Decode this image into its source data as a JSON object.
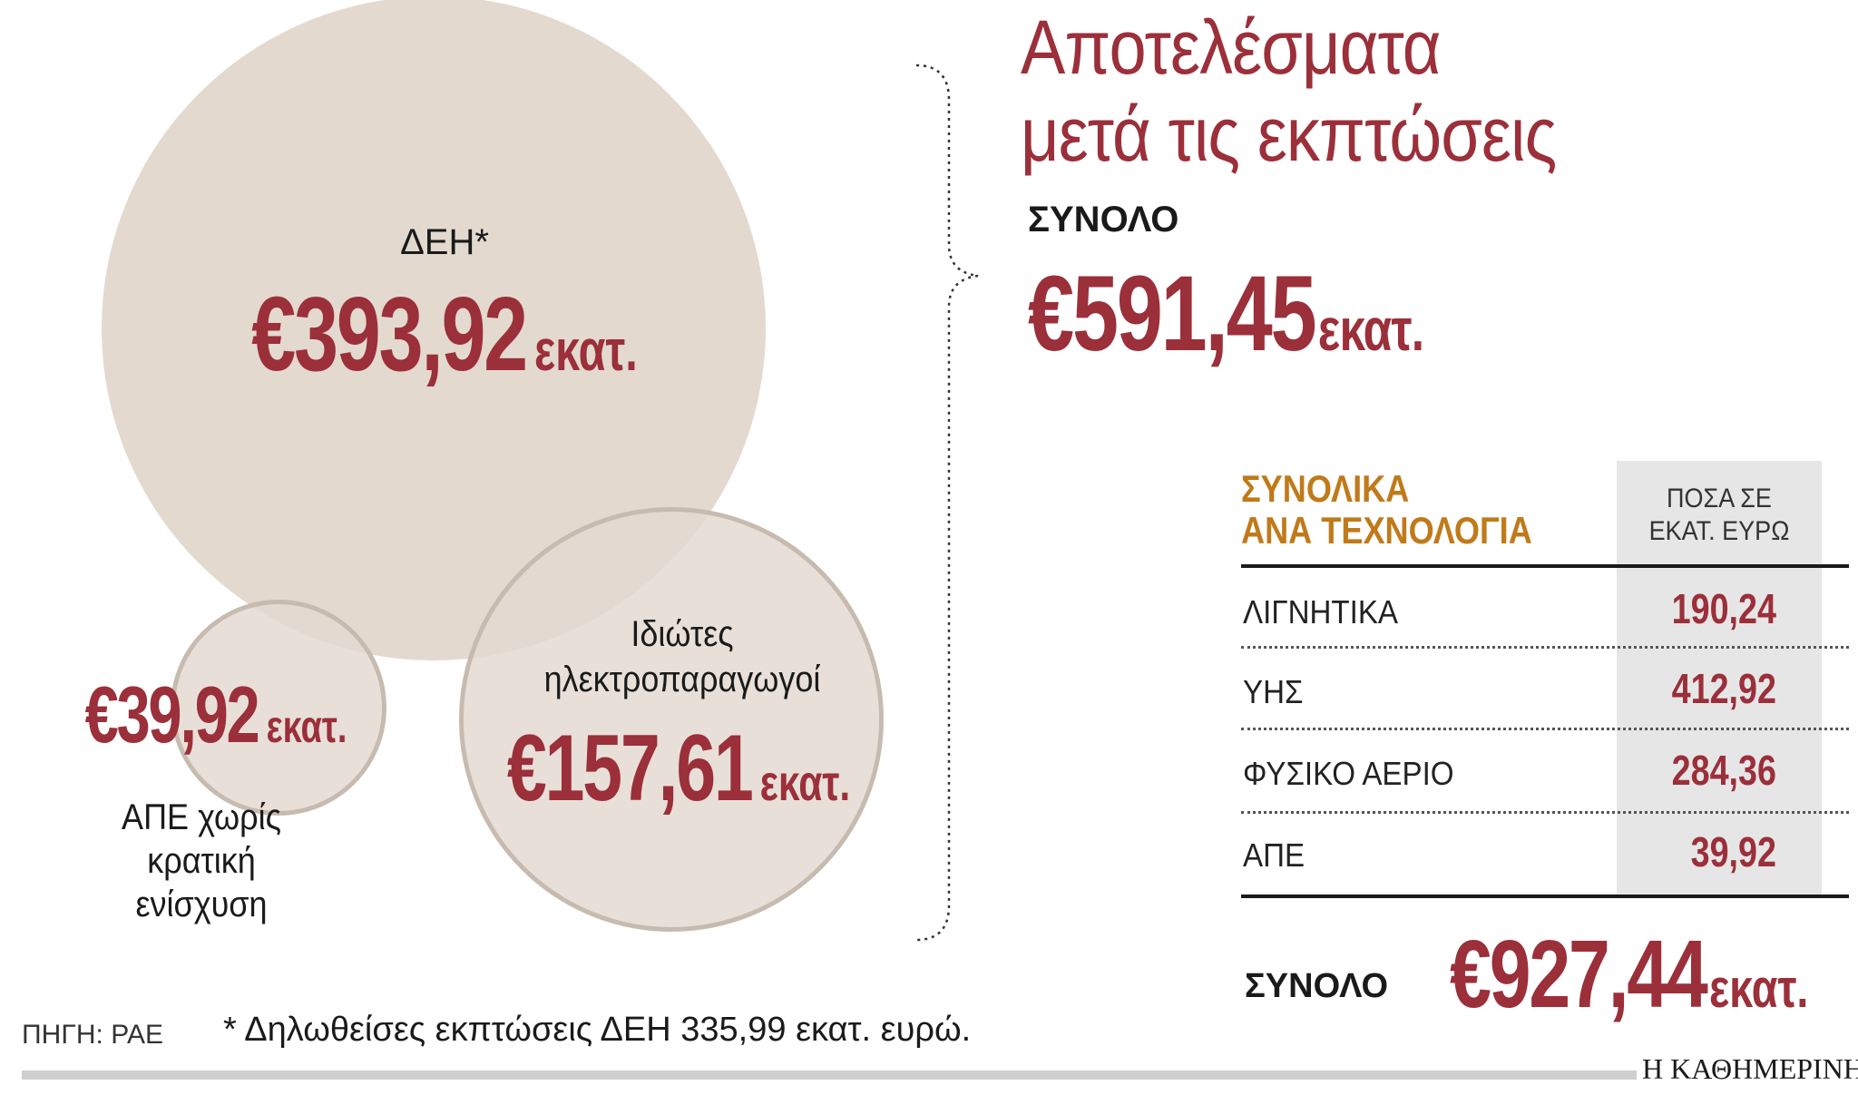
{
  "title_line1": "Αποτελέσματα",
  "title_line2": "μετά τις εκπτώσεις",
  "overall_total_label": "ΣΥΝΟΛΟ",
  "overall_total_value": "€591,45",
  "overall_total_unit": "εκατ.",
  "chart_data": [
    {
      "type": "bubble",
      "items": [
        {
          "name": "ΔΕΗ*",
          "value": 393.92,
          "label": "€393,92",
          "unit": "εκατ."
        },
        {
          "name_lines": [
            "Ιδιώτες",
            "ηλεκτροπαραγωγοί"
          ],
          "value": 157.61,
          "label": "€157,61",
          "unit": "εκατ."
        },
        {
          "name_lines": [
            "ΑΠΕ χωρίς",
            "κρατική",
            "ενίσχυση"
          ],
          "value": 39.92,
          "label": "€39,92",
          "unit": "εκατ."
        }
      ],
      "colors": {
        "fill": "#e3d9cf",
        "stroke": "#c7bbb0",
        "value_text": "#9b2f3a",
        "name_text": "#1a1a1a"
      }
    },
    {
      "type": "table",
      "title_lines": [
        "ΣΥΝΟΛΙΚΑ",
        "ΑΝΑ ΤΕΧΝΟΛΟΓΙΑ"
      ],
      "column_header_lines": [
        "ΠΟΣΑ ΣΕ",
        "ΕΚΑΤ. ΕΥΡΩ"
      ],
      "rows": [
        {
          "label": "ΛΙΓΝΗΤΙΚΑ",
          "value": "190,24"
        },
        {
          "label": "ΥΗΣ",
          "value": "412,92"
        },
        {
          "label": "ΦΥΣΙΚΟ ΑΕΡΙΟ",
          "value": "284,36"
        },
        {
          "label": "ΑΠΕ",
          "value": "39,92"
        }
      ],
      "total_label": "ΣΥΝΟΛΟ",
      "total_value": "€927,44",
      "total_unit": "εκατ."
    }
  ],
  "source": "ΠΗΓΗ: ΡΑΕ",
  "footnote": "* Δηλωθείσες εκπτώσεις ΔΕΗ 335,99 εκατ. ευρώ.",
  "logo": "Η ΚΑΘΗΜΕΡΙΝΗ",
  "colors": {
    "accent": "#9b2f3a",
    "orange": "#c07a1a"
  }
}
